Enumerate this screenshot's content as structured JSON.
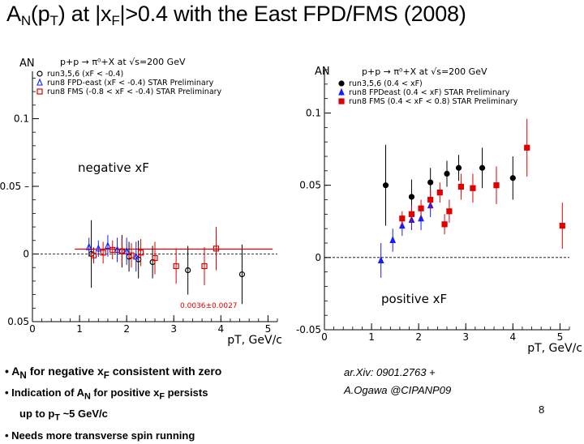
{
  "title": {
    "pre": "A",
    "sub1": "N",
    "mid": "(p",
    "sub2": "T",
    "post": ") at |x",
    "sub3": "F",
    "tail": "|>0.4  with the East FPD/FMS (2008)"
  },
  "colors": {
    "run35": "#000000",
    "run8_fpd": "#1a1aff",
    "run8_fms": "#e00000",
    "fit": "#e00000",
    "axis": "#000000"
  },
  "chart_data": [
    {
      "type": "scatter",
      "ylabel": "AN",
      "xlabel": "pT, GeV/c",
      "xlim": [
        0,
        5.2
      ],
      "ylim": [
        -0.05,
        0.135
      ],
      "x_ticks": [
        0,
        1,
        2,
        3,
        4,
        5
      ],
      "y_ticks": [
        {
          "v": 0.1,
          "t": "0.1"
        },
        {
          "v": 0.05,
          "t": "0.05 –"
        },
        {
          "v": 0,
          "t": "0"
        },
        {
          "v": -0.05,
          "t": "0.05"
        }
      ],
      "legend_header": "p+p → π⁰+X at √s=200 GeV",
      "legend_placement": "top",
      "annotation": "negative xF",
      "fit_label": "0.0036±0.0027",
      "fit_value": 0.0036,
      "fit_range": [
        0.9,
        5.1
      ],
      "series": [
        {
          "name": "run3,5,6",
          "legend_tail": "(xF < -0.4)",
          "marker": "open-circle",
          "color": "#000000",
          "points": [
            [
              1.25,
              0.0,
              0.025
            ],
            [
              1.9,
              0.002,
              0.012
            ],
            [
              2.05,
              -0.002,
              0.011
            ],
            [
              2.25,
              -0.004,
              0.014
            ],
            [
              2.55,
              -0.006,
              0.012
            ],
            [
              3.3,
              -0.012,
              0.018
            ],
            [
              4.45,
              -0.015,
              0.022
            ]
          ]
        },
        {
          "name": "run8 FPD-east",
          "legend_tail": "(xF < -0.4) STAR Preliminary",
          "marker": "open-triangle",
          "color": "#1a1aff",
          "points": [
            [
              1.2,
              0.005,
              0.007
            ],
            [
              1.4,
              0.004,
              0.006
            ],
            [
              1.6,
              0.006,
              0.008
            ],
            [
              1.8,
              0.003,
              0.009
            ],
            [
              2.0,
              0.002,
              0.01
            ],
            [
              2.2,
              -0.002,
              0.011
            ]
          ]
        },
        {
          "name": "run8 FMS",
          "legend_tail": "(-0.8 < xF < -0.4) STAR Preliminary",
          "marker": "open-square",
          "color": "#e00000",
          "points": [
            [
              1.3,
              -0.001,
              0.006
            ],
            [
              1.5,
              0.001,
              0.008
            ],
            [
              1.7,
              0.003,
              0.007
            ],
            [
              1.9,
              0.002,
              0.009
            ],
            [
              2.1,
              -0.001,
              0.009
            ],
            [
              2.3,
              0.001,
              0.01
            ],
            [
              2.6,
              -0.003,
              0.012
            ],
            [
              3.05,
              -0.009,
              0.013
            ],
            [
              3.65,
              -0.009,
              0.014
            ],
            [
              3.9,
              0.004,
              0.016
            ]
          ]
        }
      ]
    },
    {
      "type": "scatter",
      "ylabel": "AN",
      "xlabel": "pT, GeV/c",
      "xlim": [
        0,
        5.2
      ],
      "ylim": [
        -0.05,
        0.13
      ],
      "x_ticks": [
        0,
        1,
        2,
        3,
        4,
        5
      ],
      "y_ticks": [
        {
          "v": 0.1,
          "t": "0.1"
        },
        {
          "v": 0.05,
          "t": "0.05"
        },
        {
          "v": 0,
          "t": "0"
        },
        {
          "v": -0.05,
          "t": "-0.05"
        }
      ],
      "legend_header": "p+p → π⁰+X at √s=200 GeV",
      "legend_placement": "top",
      "annotation": "positive xF",
      "series": [
        {
          "name": "run3,5,6",
          "legend_tail": "(0.4 < xF)",
          "marker": "filled-circle",
          "color": "#000000",
          "points": [
            [
              1.3,
              0.05,
              0.028
            ],
            [
              1.85,
              0.042,
              0.012
            ],
            [
              2.25,
              0.052,
              0.01
            ],
            [
              2.6,
              0.058,
              0.009
            ],
            [
              2.85,
              0.062,
              0.009
            ],
            [
              3.35,
              0.062,
              0.014
            ],
            [
              4.0,
              0.055,
              0.015
            ]
          ]
        },
        {
          "name": "run8 FPDeast",
          "legend_tail": "(0.4 < xF)  STAR Preliminary",
          "marker": "filled-triangle",
          "color": "#1a1aff",
          "points": [
            [
              1.2,
              -0.002,
              0.012
            ],
            [
              1.45,
              0.012,
              0.008
            ],
            [
              1.65,
              0.022,
              0.007
            ],
            [
              1.85,
              0.026,
              0.007
            ],
            [
              2.05,
              0.027,
              0.008
            ],
            [
              2.25,
              0.036,
              0.008
            ]
          ]
        },
        {
          "name": "run8 FMS",
          "legend_tail": "(0.4 < xF < 0.8) STAR Preliminary",
          "marker": "filled-square",
          "color": "#e00000",
          "points": [
            [
              1.65,
              0.027,
              0.005
            ],
            [
              1.85,
              0.03,
              0.006
            ],
            [
              2.05,
              0.034,
              0.006
            ],
            [
              2.25,
              0.04,
              0.007
            ],
            [
              2.45,
              0.045,
              0.007
            ],
            [
              2.55,
              0.023,
              0.007
            ],
            [
              2.65,
              0.032,
              0.008
            ],
            [
              2.9,
              0.049,
              0.009
            ],
            [
              3.15,
              0.048,
              0.01
            ],
            [
              3.65,
              0.05,
              0.013
            ],
            [
              4.3,
              0.076,
              0.02
            ],
            [
              5.05,
              0.022,
              0.016
            ]
          ]
        }
      ]
    }
  ],
  "bullets": {
    "b1_pre": "A",
    "b1_sub": "N",
    "b1_mid": " for negative x",
    "b1_sub2": "F",
    "b1_post": "  consistent with zero",
    "b2_pre": "Indication of A",
    "b2_sub": "N",
    "b2_mid": " for positive x",
    "b2_sub2": "F",
    "b2_post": " persists",
    "b2_line2_pre": "up to p",
    "b2_line2_sub": "T",
    "b2_line2_post": " ~5 GeV/c",
    "b3": "Needs more transverse spin running"
  },
  "reference": {
    "arxiv": "ar.Xiv: 0901.2763 +",
    "author": "A.Ogawa @CIPANP09"
  },
  "page_number": "8"
}
